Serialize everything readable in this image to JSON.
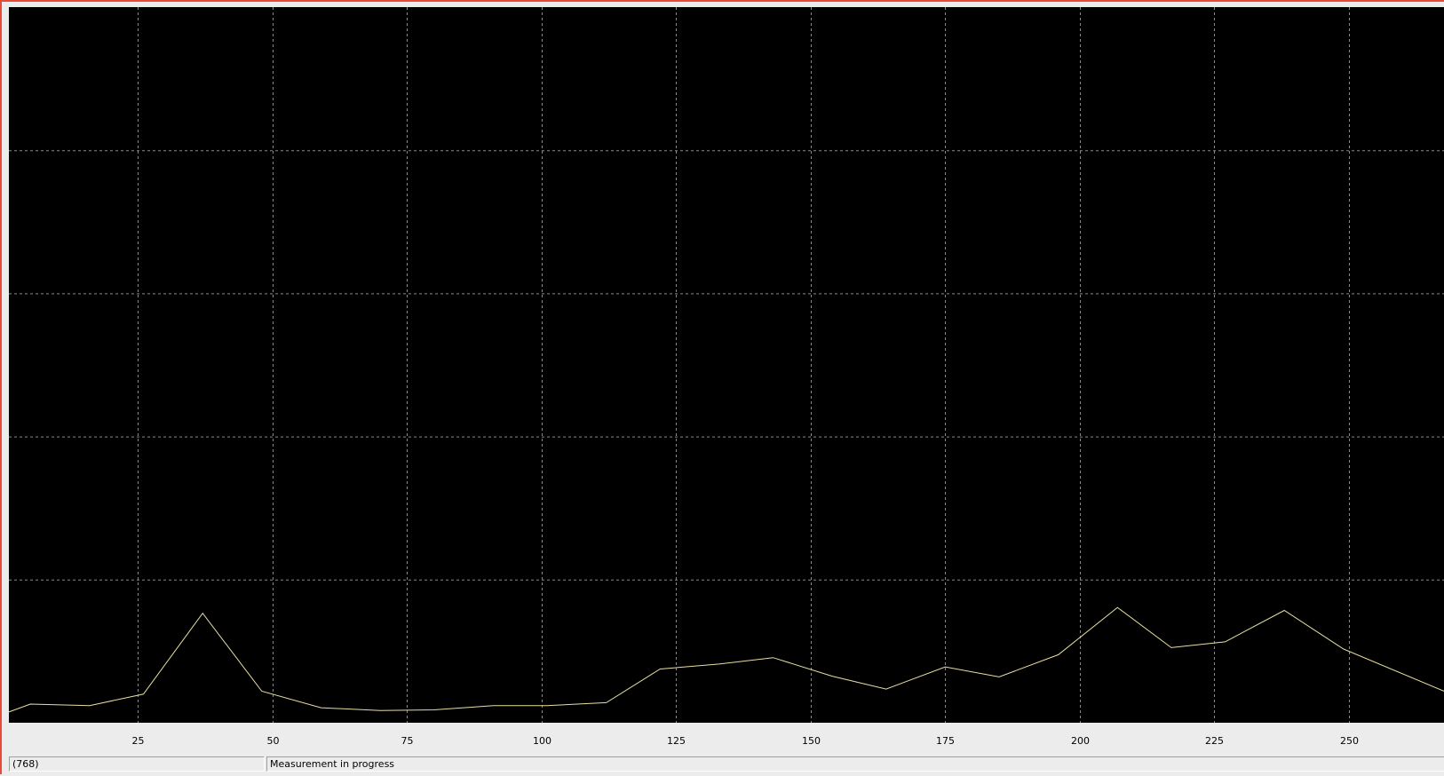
{
  "colors": {
    "plot_background": "#000000",
    "grid": "#8a8a8a",
    "trace": "#e8e0a0",
    "frame_border": "#e84a3a",
    "axis_strip": "#ececec"
  },
  "status_bar": {
    "left_text": "(768)",
    "right_text": "Measurement in progress"
  },
  "chart_data": {
    "type": "line",
    "title": "",
    "xlabel": "",
    "ylabel": "",
    "xlim": [
      1,
      268
    ],
    "ylim": [
      0,
      100
    ],
    "grid": true,
    "x_ticks": [
      25,
      50,
      75,
      100,
      125,
      150,
      175,
      200,
      225,
      250
    ],
    "y_grid_values": [
      20,
      40,
      60,
      80
    ],
    "series": [
      {
        "x": [
          1,
          5,
          16,
          26,
          37,
          48,
          59,
          70,
          80,
          91,
          101,
          112,
          122,
          133,
          143,
          154,
          164,
          175,
          185,
          196,
          207,
          217,
          227,
          238,
          249,
          268
        ],
        "y": [
          1.5,
          2.6,
          2.4,
          4.0,
          15.3,
          4.4,
          2.1,
          1.7,
          1.8,
          2.4,
          2.4,
          2.8,
          7.5,
          8.2,
          9.1,
          6.5,
          4.7,
          7.8,
          6.4,
          9.5,
          16.1,
          10.5,
          11.3,
          15.7,
          10.3,
          4.3
        ]
      }
    ]
  }
}
